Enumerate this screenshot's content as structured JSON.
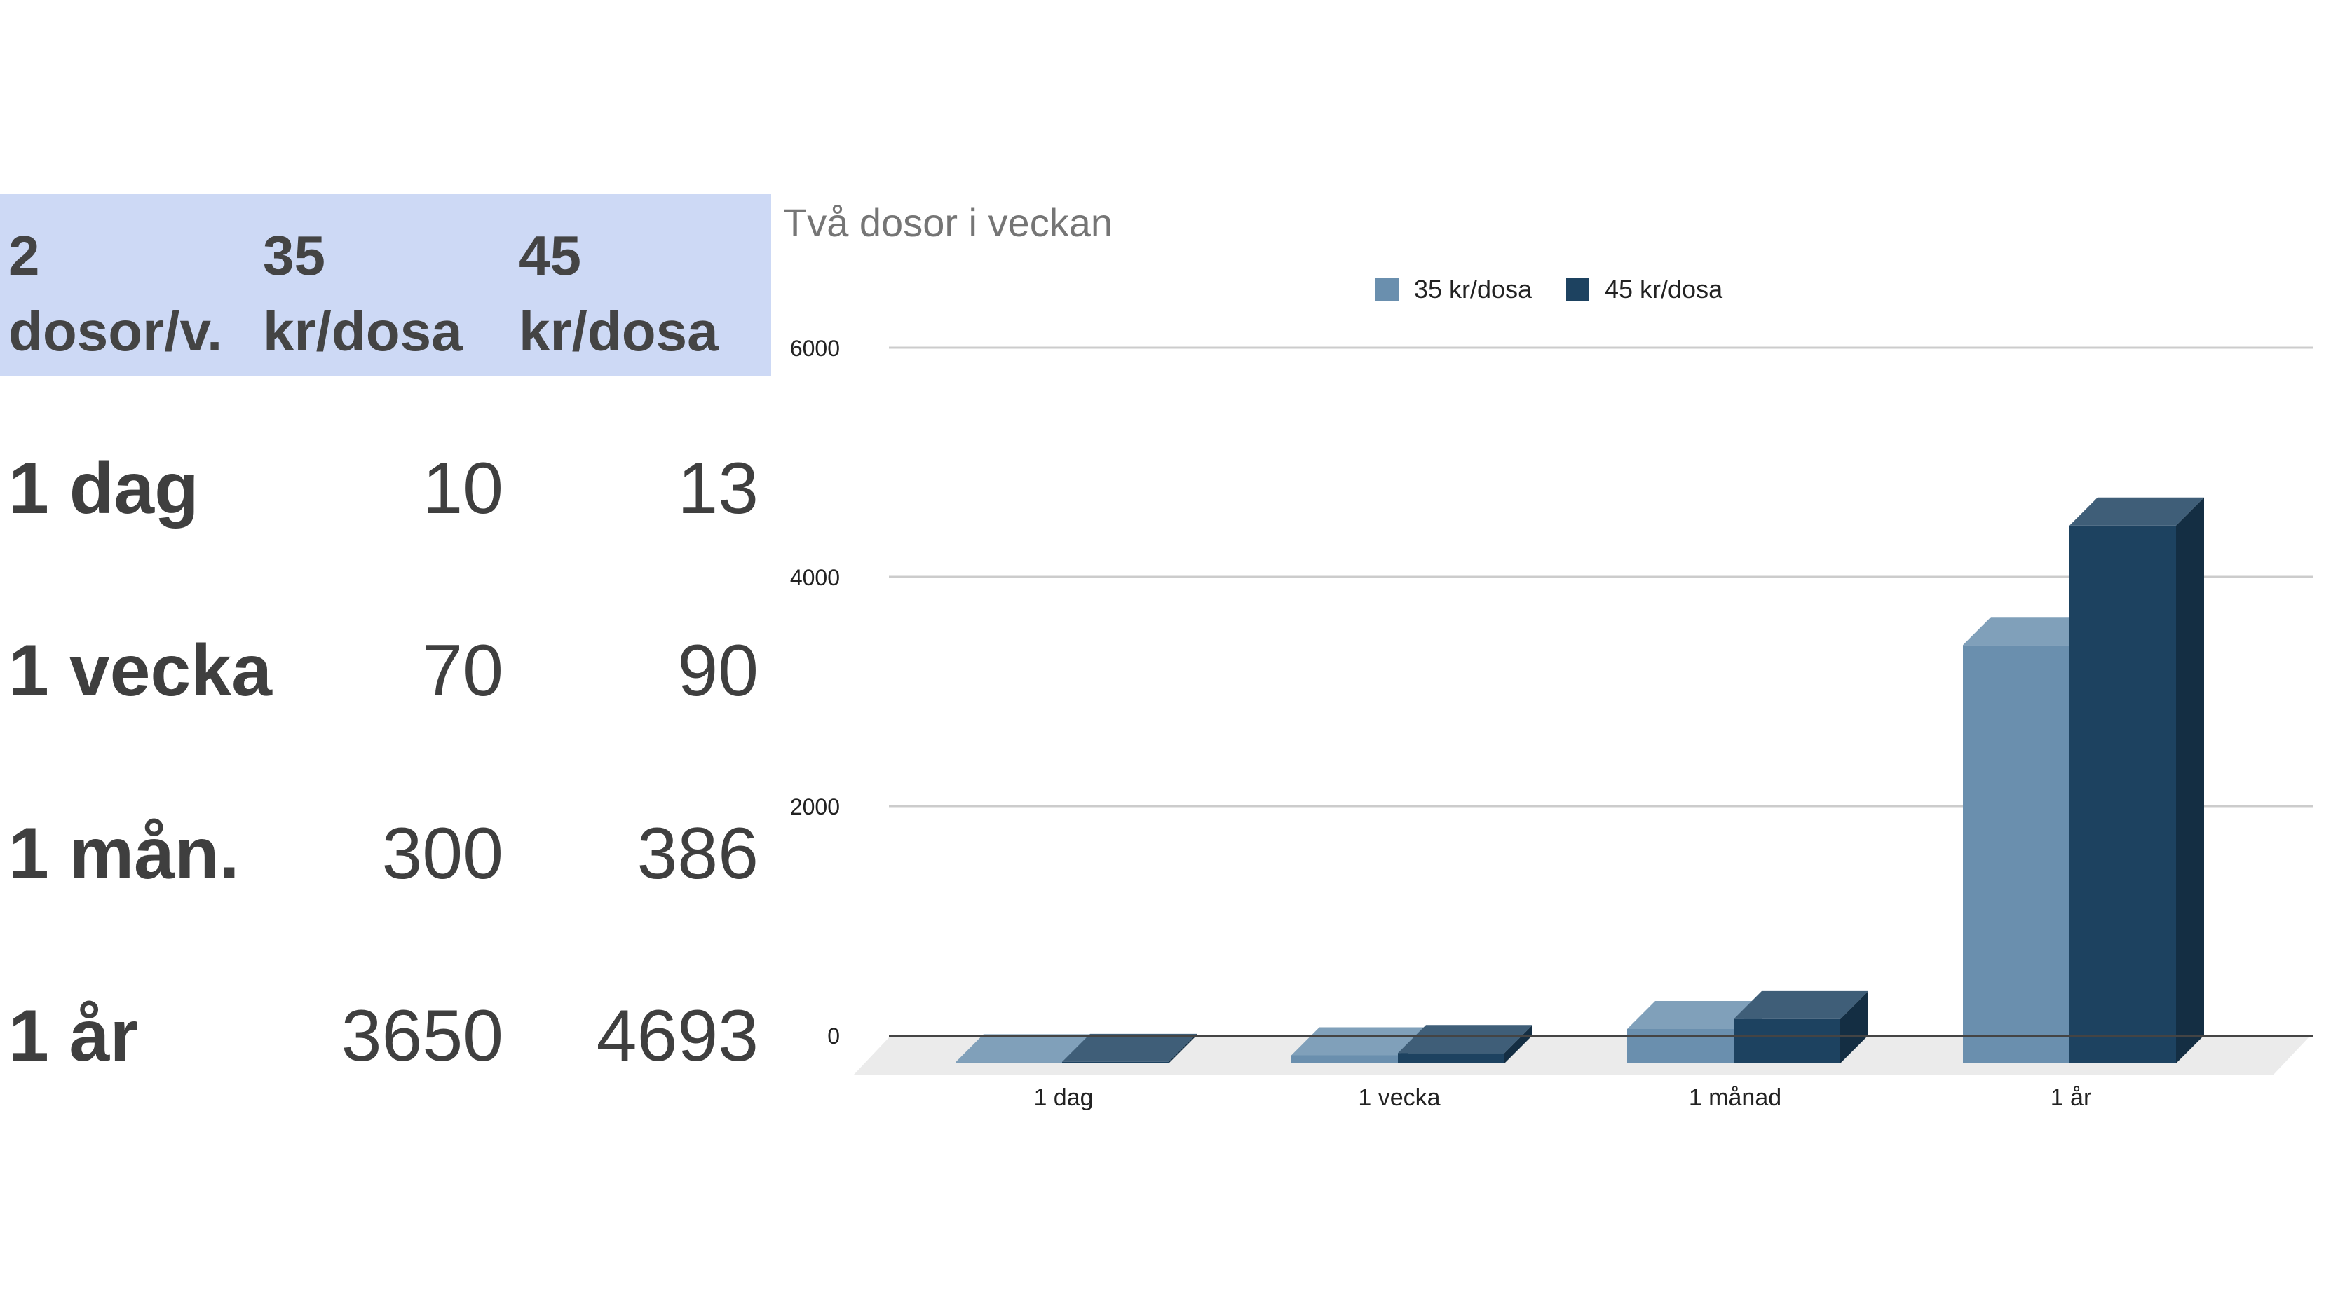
{
  "table": {
    "headers": [
      "2\ndosor/v.",
      "35\nkr/dosa",
      "45\nkr/dosa"
    ],
    "rows": [
      {
        "label": "1 dag",
        "v35": "10",
        "v45": "13"
      },
      {
        "label": "1 vecka",
        "v35": "70",
        "v45": "90"
      },
      {
        "label": "1 mån.",
        "v35": "300",
        "v45": "386"
      },
      {
        "label": "1 år",
        "v35": "3650",
        "v45": "4693"
      }
    ]
  },
  "colors": {
    "header_bg": "#cdd9f5",
    "series_35": "#6a8fae",
    "series_45": "#1d4260"
  },
  "chart_data": {
    "type": "bar",
    "style": "3d",
    "title": "Två dosor i veckan",
    "categories": [
      "1 dag",
      "1 vecka",
      "1 månad",
      "1 år"
    ],
    "series": [
      {
        "name": "35 kr/dosa",
        "values": [
          10,
          70,
          300,
          3650
        ]
      },
      {
        "name": "45 kr/dosa",
        "values": [
          13,
          90,
          386,
          4693
        ]
      }
    ],
    "yticks": [
      "6000",
      "4000",
      "2000",
      "0"
    ],
    "ylim": [
      0,
      6000
    ],
    "grid": true,
    "legend": "top"
  }
}
